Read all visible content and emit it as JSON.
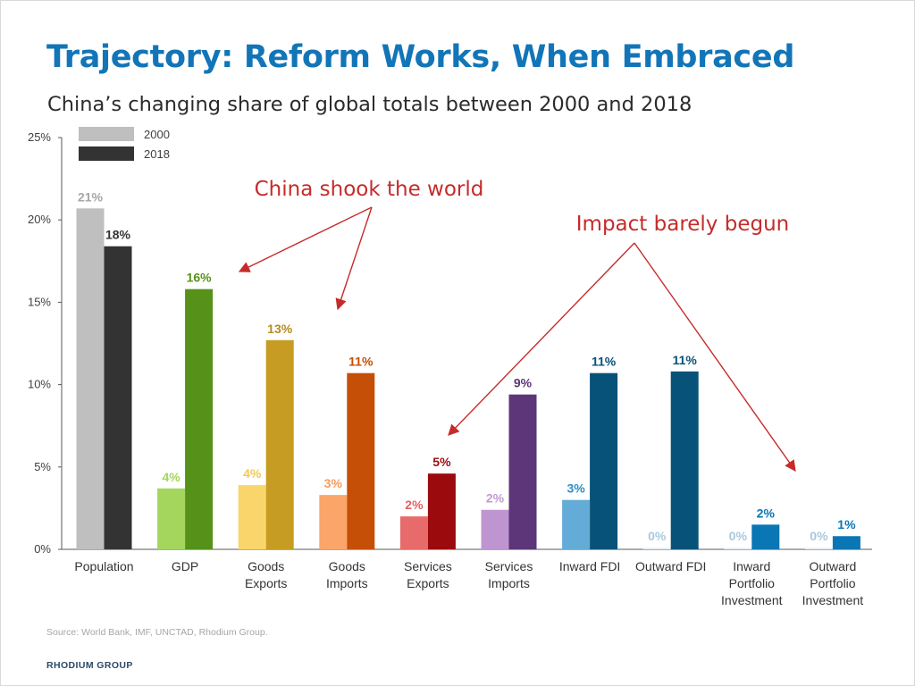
{
  "header": {
    "title": "Trajectory: Reform Works, When Embraced",
    "subtitle": "China’s changing share of global totals between 2000 and 2018"
  },
  "footer": {
    "source": "Source: World Bank, IMF, UNCTAD, Rhodium Group.",
    "brand": "RHODIUM GROUP"
  },
  "chart_data": {
    "type": "bar",
    "title": "",
    "xlabel": "",
    "ylabel": "",
    "ylim": [
      0,
      25
    ],
    "yticks": [
      0,
      5,
      10,
      15,
      20,
      25
    ],
    "ytick_labels": [
      "0%",
      "5%",
      "10%",
      "15%",
      "20%",
      "25%"
    ],
    "grid": false,
    "legend_position": "top-left",
    "legend": [
      {
        "label": "2000",
        "color": "#bfbfbf"
      },
      {
        "label": "2018",
        "color": "#333333"
      }
    ],
    "categories": [
      [
        "Population"
      ],
      [
        "GDP"
      ],
      [
        "Goods",
        "Exports"
      ],
      [
        "Goods",
        "Imports"
      ],
      [
        "Services",
        "Exports"
      ],
      [
        "Services",
        "Imports"
      ],
      [
        "Inward FDI"
      ],
      [
        "Outward FDI"
      ],
      [
        "Inward",
        "Portfolio",
        "Investment"
      ],
      [
        "Outward",
        "Portfolio",
        "Investment"
      ]
    ],
    "series": [
      {
        "name": "2000",
        "values": [
          20.7,
          3.7,
          3.9,
          3.3,
          2.0,
          2.4,
          3.0,
          0.1,
          0.1,
          0.1
        ],
        "labels": [
          "21%",
          "4%",
          "4%",
          "3%",
          "2%",
          "2%",
          "3%",
          "0%",
          "0%",
          "0%"
        ],
        "colors": [
          "#bfbfbf",
          "#a4d65e",
          "#f9d56b",
          "#fba56a",
          "#e76b6b",
          "#bf95d1",
          "#64acd8",
          "#e8f1fa",
          "#e8f1fa",
          "#e8f1fa"
        ],
        "label_colors": [
          "#a6a6a6",
          "#a4d65e",
          "#f7c948",
          "#f89a5a",
          "#e66060",
          "#c29bd4",
          "#2a8ec7",
          "#a8c8df",
          "#a8c8df",
          "#a8c8df"
        ]
      },
      {
        "name": "2018",
        "values": [
          18.4,
          15.8,
          12.7,
          10.7,
          4.6,
          9.4,
          10.7,
          10.8,
          1.5,
          0.8
        ],
        "labels": [
          "18%",
          "16%",
          "13%",
          "11%",
          "5%",
          "9%",
          "11%",
          "11%",
          "2%",
          "1%"
        ],
        "colors": [
          "#333333",
          "#569219",
          "#c69c22",
          "#c54f06",
          "#9b0a0d",
          "#5c3679",
          "#075278",
          "#075278",
          "#0a76b4",
          "#0a76b4"
        ],
        "label_colors": [
          "#333333",
          "#569219",
          "#b48c1f",
          "#c54f06",
          "#9b0a0d",
          "#5c3679",
          "#075278",
          "#075278",
          "#0a76b4",
          "#0a76b4"
        ]
      }
    ],
    "annotations": [
      {
        "text": "China shook the world",
        "color": "#c62b2b",
        "target_categories": [
          1,
          3
        ]
      },
      {
        "text": "Impact barely begun",
        "color": "#c62b2b",
        "target_categories": [
          4,
          9
        ]
      }
    ]
  }
}
